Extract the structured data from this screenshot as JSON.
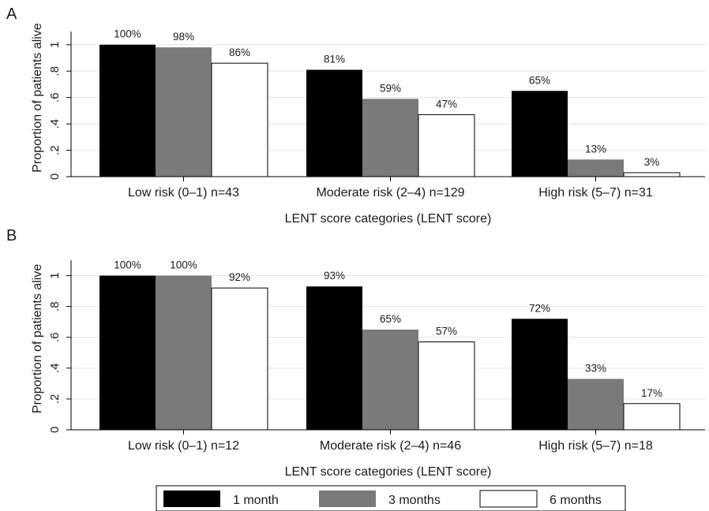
{
  "chart_data": [
    {
      "type": "bar",
      "panel": "A",
      "categories": [
        "Low risk (0–1) n=43",
        "Moderate risk (2–4) n=129",
        "High risk (5–7) n=31"
      ],
      "series": [
        {
          "name": "1 month",
          "color": "#000000",
          "values": [
            1.0,
            0.81,
            0.65
          ],
          "labels": [
            "100%",
            "81%",
            "65%"
          ]
        },
        {
          "name": "3 months",
          "color": "#7a7a7a",
          "values": [
            0.98,
            0.59,
            0.13
          ],
          "labels": [
            "98%",
            "59%",
            "13%"
          ]
        },
        {
          "name": "6 months",
          "color": "#ffffff",
          "values": [
            0.86,
            0.47,
            0.03
          ],
          "labels": [
            "86%",
            "47%",
            "3%"
          ]
        }
      ],
      "xlabel": "LENT score categories (LENT score)",
      "ylabel": "Proportion of patients alive",
      "ylim": [
        0,
        1.1
      ],
      "yticks": [
        0,
        0.2,
        0.4,
        0.6,
        0.8,
        1
      ],
      "ytick_labels": [
        "0",
        ".2",
        ".4",
        ".6",
        ".8",
        "1"
      ],
      "grid": true
    },
    {
      "type": "bar",
      "panel": "B",
      "categories": [
        "Low risk (0–1) n=12",
        "Moderate risk (2–4) n=46",
        "High risk (5–7) n=18"
      ],
      "series": [
        {
          "name": "1 month",
          "color": "#000000",
          "values": [
            1.0,
            0.93,
            0.72
          ],
          "labels": [
            "100%",
            "93%",
            "72%"
          ]
        },
        {
          "name": "3 months",
          "color": "#7a7a7a",
          "values": [
            1.0,
            0.65,
            0.33
          ],
          "labels": [
            "100%",
            "65%",
            "33%"
          ]
        },
        {
          "name": "6 months",
          "color": "#ffffff",
          "values": [
            0.92,
            0.57,
            0.17
          ],
          "labels": [
            "92%",
            "57%",
            "17%"
          ]
        }
      ],
      "xlabel": "LENT score categories (LENT score)",
      "ylabel": "Proportion of patients alive",
      "ylim": [
        0,
        1.1
      ],
      "yticks": [
        0,
        0.2,
        0.4,
        0.6,
        0.8,
        1
      ],
      "ytick_labels": [
        "0",
        ".2",
        ".4",
        ".6",
        ".8",
        "1"
      ],
      "grid": true
    }
  ],
  "legend": {
    "placement": "bottom-center",
    "items": [
      {
        "label": "1 month",
        "color": "#000000"
      },
      {
        "label": "3 months",
        "color": "#7a7a7a"
      },
      {
        "label": "6 months",
        "color": "#ffffff"
      }
    ]
  }
}
